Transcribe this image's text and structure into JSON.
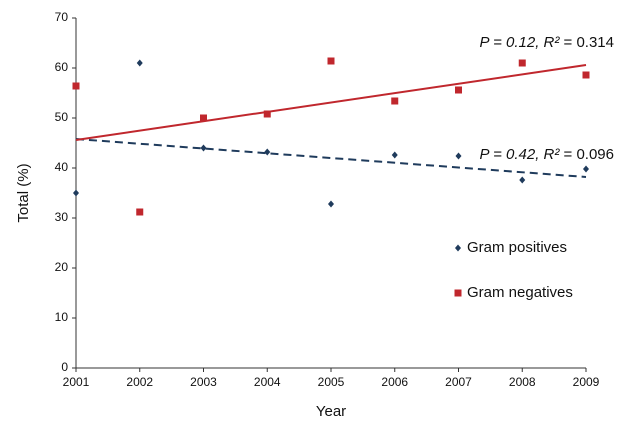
{
  "chart_data": {
    "type": "scatter",
    "x_label": "Year",
    "y_label": "Total (%)",
    "xlim": [
      2001,
      2009
    ],
    "xticks": [
      2001,
      2002,
      2003,
      2004,
      2005,
      2006,
      2007,
      2008,
      2009
    ],
    "ylim": [
      0,
      70
    ],
    "yticks": [
      0,
      10,
      20,
      30,
      40,
      50,
      60,
      70
    ],
    "grid": false,
    "legend": "right",
    "series": [
      {
        "name": "Gram positives",
        "color": "#1f3b5c",
        "marker": "diamond",
        "x": [
          2001,
          2002,
          2003,
          2004,
          2005,
          2006,
          2007,
          2008,
          2009
        ],
        "values": [
          35,
          61,
          44,
          43.2,
          32.8,
          42.6,
          42.4,
          37.6,
          39.8
        ]
      },
      {
        "name": "Gram negatives",
        "color": "#c0272d",
        "marker": "square",
        "x": [
          2001,
          2002,
          2003,
          2004,
          2005,
          2006,
          2007,
          2008,
          2009
        ],
        "values": [
          56.4,
          31.2,
          50,
          50.8,
          61.4,
          53.4,
          55.6,
          61,
          58.6
        ]
      }
    ],
    "trendlines": [
      {
        "series": 0,
        "dashed": true,
        "x": [
          2001,
          2009
        ],
        "y": [
          45.8,
          38.2
        ],
        "italic_text": "P = 0.42, R²",
        "text": " = 0.096"
      },
      {
        "series": 1,
        "dashed": false,
        "x": [
          2001,
          2009
        ],
        "y": [
          45.6,
          60.6
        ],
        "italic_text": "P = 0.12, R²",
        "text": " = 0.314"
      }
    ]
  }
}
